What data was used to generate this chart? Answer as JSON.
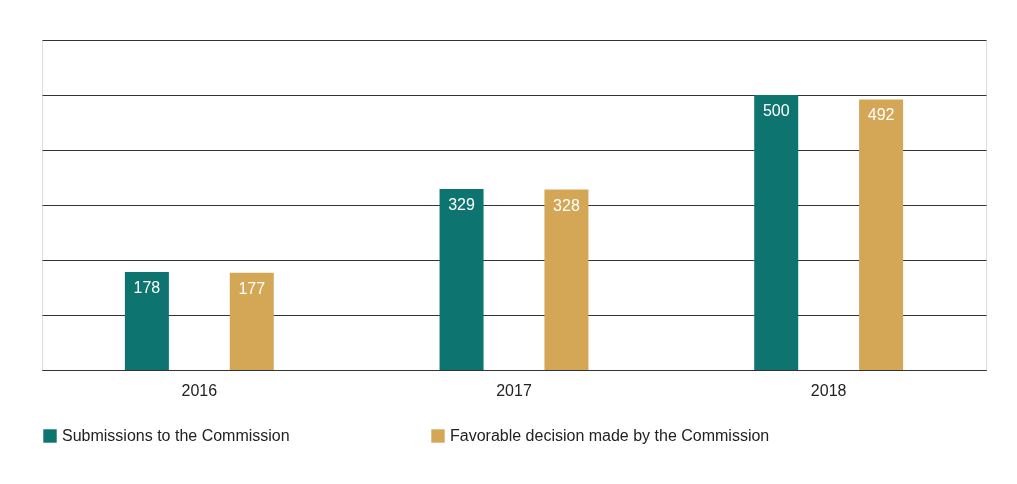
{
  "chart_data": {
    "type": "bar",
    "categories": [
      "2016",
      "2017",
      "2018"
    ],
    "series": [
      {
        "name": "Submissions to the Commission",
        "color": "#0e7470",
        "values": [
          178,
          329,
          500
        ]
      },
      {
        "name": "Favorable decision made by the Commission",
        "color": "#d4a757",
        "values": [
          177,
          328,
          492
        ]
      }
    ],
    "ylim": [
      0,
      600
    ],
    "yticks": [
      {
        "value": 0,
        "label": null
      },
      {
        "value": 100,
        "label": null
      },
      {
        "value": 200,
        "label": null
      },
      {
        "value": 300,
        "label": null
      },
      {
        "value": 400,
        "label": null
      },
      {
        "value": 500,
        "label": null
      },
      {
        "value": 600,
        "label": null
      }
    ],
    "tick_labels": "x",
    "grid": "y",
    "legend": "bottom",
    "data_labels": true
  }
}
